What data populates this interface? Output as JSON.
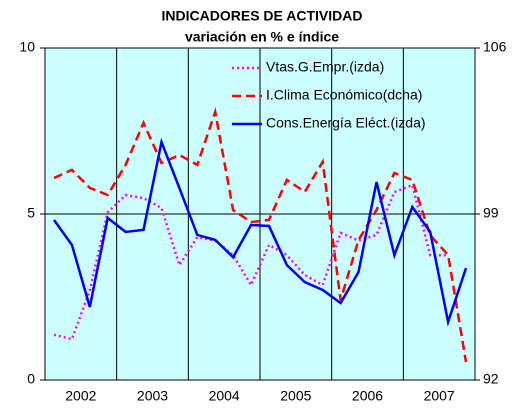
{
  "chart_data": {
    "type": "line",
    "title": "INDICADORES DE ACTIVIDAD",
    "subtitle": "variación en % e índice",
    "categories": [
      null,
      "2002",
      null,
      null,
      null,
      "2003",
      null,
      null,
      null,
      "2004",
      null,
      null,
      null,
      "2005",
      null,
      null,
      null,
      "2006",
      null,
      null,
      null,
      "2007",
      null,
      null
    ],
    "ylim": [
      0,
      10
    ],
    "yticks": [
      0,
      5,
      10
    ],
    "y2lim": [
      92,
      106
    ],
    "y2ticks": [
      92,
      99,
      106
    ],
    "background": "#ccffff",
    "series": [
      {
        "name": "Vtas.G.Empr.(izda)",
        "color": "#ff00ff",
        "style": "dotted",
        "values": [
          1.36,
          1.23,
          2.7,
          5.05,
          5.57,
          5.48,
          5.18,
          3.46,
          4.3,
          4.2,
          3.76,
          2.86,
          4.07,
          3.76,
          3.16,
          2.86,
          4.43,
          4.2,
          4.37,
          5.66,
          5.87,
          3.76,
          3.76,
          null
        ]
      },
      {
        "name": "I.Clima Económico(dcha)",
        "color": "#ff0000",
        "style": "dashed",
        "axis": "y2",
        "values": [
          100.52,
          100.86,
          100.1,
          99.8,
          101.07,
          102.84,
          101.15,
          101.49,
          101.07,
          103.3,
          99.17,
          98.66,
          98.75,
          100.44,
          99.93,
          101.2,
          95.37,
          97.9,
          99.17,
          100.73,
          100.44,
          98.1,
          97.27,
          92.76
        ]
      },
      {
        "name": "Cons.Energía Eléct.(izda)",
        "color": "#0000ff",
        "style": "solid",
        "values": [
          4.82,
          4.07,
          2.2,
          4.88,
          4.46,
          4.52,
          7.17,
          5.78,
          4.37,
          4.22,
          3.7,
          4.67,
          4.64,
          3.46,
          2.95,
          2.71,
          2.32,
          3.25,
          5.96,
          3.76,
          5.21,
          4.46,
          1.75,
          3.37
        ]
      }
    ]
  }
}
